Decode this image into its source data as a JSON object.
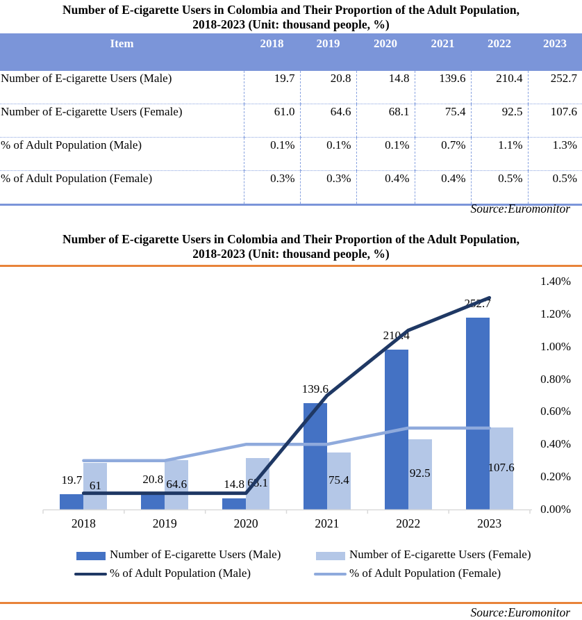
{
  "table": {
    "title_line1": "Number of E-cigarette Users in Colombia and Their Proportion of the Adult Population,",
    "title_line2": "2018-2023 (Unit: thousand people, %)",
    "header": [
      "Item",
      "2018",
      "2019",
      "2020",
      "2021",
      "2022",
      "2023"
    ],
    "rows": [
      {
        "label": "Number of E-cigarette Users (Male)",
        "values": [
          "19.7",
          "20.8",
          "14.8",
          "139.6",
          "210.4",
          "252.7"
        ]
      },
      {
        "label": "Number of E-cigarette Users (Female)",
        "values": [
          "61.0",
          "64.6",
          "68.1",
          "75.4",
          "92.5",
          "107.6"
        ]
      },
      {
        "label": "% of Adult Population (Male)",
        "values": [
          "0.1%",
          "0.1%",
          "0.1%",
          "0.7%",
          "1.1%",
          "1.3%"
        ]
      },
      {
        "label": "% of Adult Population (Female)",
        "values": [
          "0.3%",
          "0.3%",
          "0.4%",
          "0.4%",
          "0.5%",
          "0.5%"
        ]
      }
    ],
    "source": "Source:Euromonitor"
  },
  "chart": {
    "title_line1": "Number of E-cigarette Users in Colombia and Their Proportion of the Adult Population,",
    "title_line2": "2018-2023 (Unit: thousand people, %)",
    "source": "Source:Euromonitor",
    "legend": [
      "Number of E-cigarette Users (Male)",
      "Number of E-cigarette Users (Female)",
      "% of Adult Population (Male)",
      "% of Adult Population (Female)"
    ],
    "accent_orange": "#E8833A"
  },
  "chart_data": {
    "type": "bar",
    "subtype": "combo-bar-line",
    "title": "Number of E-cigarette Users in Colombia and Their Proportion of the Adult Population, 2018-2023 (Unit: thousand people, %)",
    "categories": [
      "2018",
      "2019",
      "2020",
      "2021",
      "2022",
      "2023"
    ],
    "series": [
      {
        "name": "Number of E-cigarette Users (Male)",
        "type": "bar",
        "axis": "hidden-left",
        "color": "#4472C4",
        "values": [
          19.7,
          20.8,
          14.8,
          139.6,
          210.4,
          252.7
        ],
        "labels": [
          "19.7",
          "20.8",
          "14.8",
          "139.6",
          "210.4",
          "252.7"
        ]
      },
      {
        "name": "Number of E-cigarette Users (Female)",
        "type": "bar",
        "axis": "hidden-left",
        "color": "#B4C7E7",
        "values": [
          61.0,
          64.6,
          68.1,
          75.4,
          92.5,
          107.6
        ],
        "labels": [
          "61",
          "64.6",
          "68.1",
          "75.4",
          "92.5",
          "107.6"
        ]
      },
      {
        "name": "% of Adult Population (Male)",
        "type": "line",
        "axis": "right",
        "color": "#1F3864",
        "values": [
          0.1,
          0.1,
          0.1,
          0.7,
          1.1,
          1.3
        ]
      },
      {
        "name": "% of Adult Population (Female)",
        "type": "line",
        "axis": "right",
        "color": "#8FAADC",
        "values": [
          0.3,
          0.3,
          0.4,
          0.4,
          0.5,
          0.5
        ]
      }
    ],
    "right_axis": {
      "ticks": [
        "1.40%",
        "1.20%",
        "1.00%",
        "0.80%",
        "0.60%",
        "0.40%",
        "0.20%",
        "0.00%"
      ],
      "min": 0,
      "max": 1.4,
      "unit": "%"
    },
    "hidden_bar_axis": {
      "min": 0,
      "max": 300
    },
    "grid": false,
    "legend_position": "bottom",
    "axis_line_color": "#D9D9D9"
  }
}
